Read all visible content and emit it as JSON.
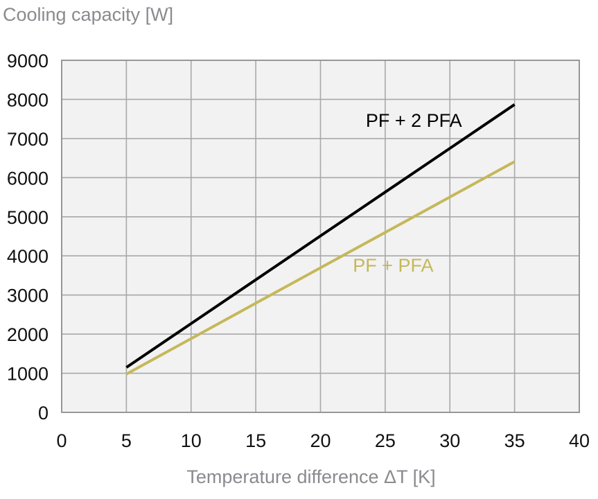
{
  "chart_data": {
    "type": "line",
    "title": "",
    "ylabel": "Cooling capacity [W]",
    "xlabel": "Temperature difference ΔT [K]",
    "xlim": [
      0,
      40
    ],
    "ylim": [
      0,
      9000
    ],
    "x_ticks": [
      0,
      5,
      10,
      15,
      20,
      25,
      30,
      35,
      40
    ],
    "y_ticks": [
      0,
      1000,
      2000,
      3000,
      4000,
      5000,
      6000,
      7000,
      8000,
      9000
    ],
    "grid": true,
    "background": "#f2f2f2",
    "grid_color": "#a8a8a8",
    "series": [
      {
        "name": "PF + 2 PFA",
        "color": "#000000",
        "x": [
          5,
          10,
          15,
          20,
          25,
          30,
          35
        ],
        "y": [
          1150,
          2270,
          3390,
          4510,
          5630,
          6750,
          7870
        ]
      },
      {
        "name": "PF + PFA",
        "color": "#c5b85a",
        "x": [
          5,
          10,
          15,
          20,
          25,
          30,
          35
        ],
        "y": [
          980,
          1885,
          2790,
          3695,
          4600,
          5505,
          6410
        ]
      }
    ],
    "annotations": [
      {
        "text": "PF + 2 PFA",
        "x": 23.5,
        "y": 7300,
        "color": "#000000"
      },
      {
        "text": "PF + PFA",
        "x": 22.5,
        "y": 3600,
        "color": "#c5b85a"
      }
    ]
  }
}
